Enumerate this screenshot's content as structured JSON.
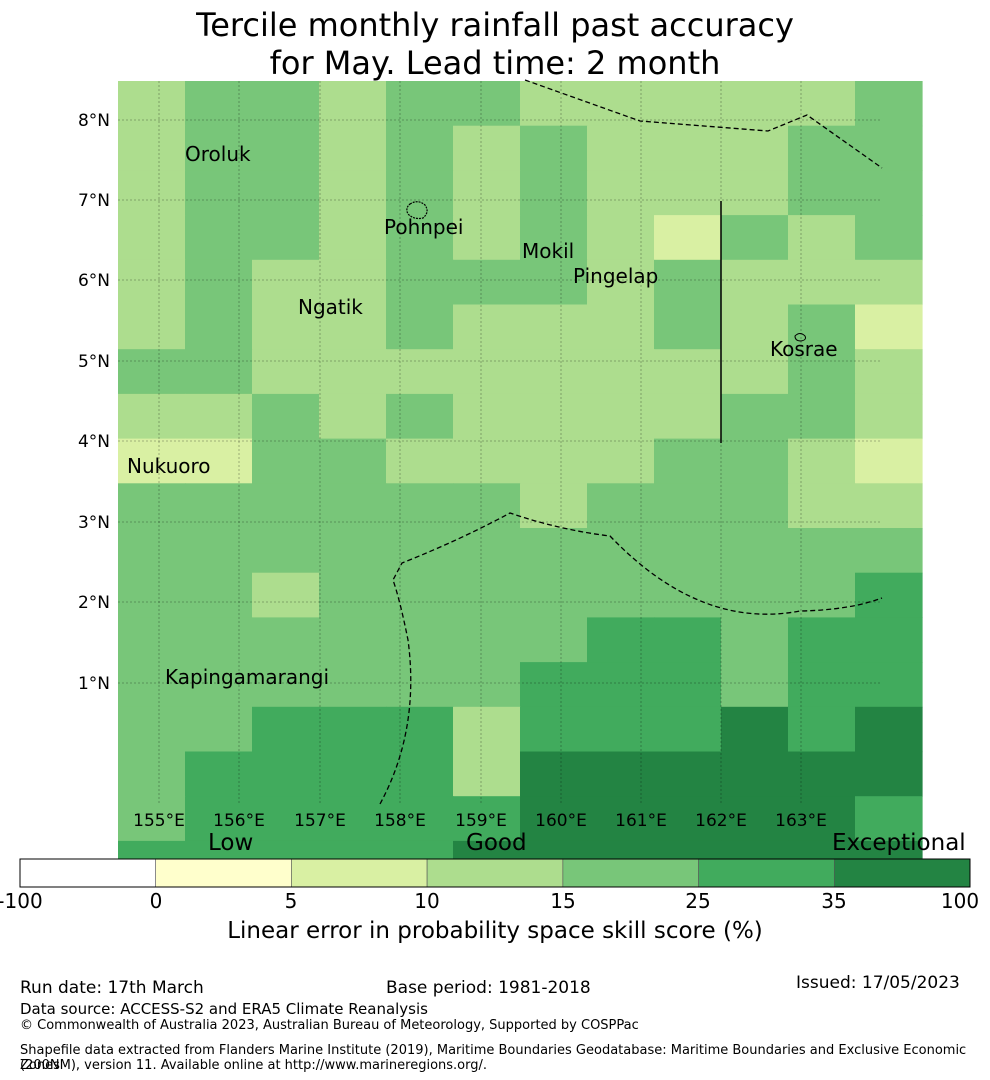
{
  "title": {
    "line1": "Tercile monthly rainfall past accuracy",
    "line2": "for May. Lead time: 2 month"
  },
  "map": {
    "lon_labels": [
      "155°E",
      "156°E",
      "157°E",
      "158°E",
      "159°E",
      "160°E",
      "161°E",
      "162°E",
      "163°E"
    ],
    "lat_labels": [
      "8°N",
      "7°N",
      "6°N",
      "5°N",
      "4°N",
      "3°N",
      "2°N",
      "1°N"
    ],
    "places": [
      "Oroluk",
      "Pohnpei",
      "Mokil",
      "Pingelap",
      "Ngatik",
      "Kosrae",
      "Nukuoro",
      "Kapingamarangi"
    ],
    "class_colors": [
      "#ffffff",
      "#ffffcc",
      "#d9f0a3",
      "#addd8e",
      "#78c679",
      "#41ab5d",
      "#238443"
    ],
    "grid": [
      [
        3,
        4,
        4,
        3,
        4,
        4,
        3,
        3,
        3,
        3,
        3,
        4
      ],
      [
        3,
        4,
        4,
        3,
        4,
        3,
        4,
        3,
        3,
        3,
        4,
        4
      ],
      [
        3,
        4,
        4,
        3,
        4,
        3,
        4,
        3,
        3,
        3,
        4,
        4
      ],
      [
        3,
        4,
        4,
        3,
        4,
        3,
        4,
        3,
        2,
        4,
        3,
        4
      ],
      [
        3,
        4,
        3,
        3,
        4,
        4,
        4,
        3,
        4,
        3,
        3,
        3
      ],
      [
        3,
        4,
        3,
        3,
        4,
        3,
        3,
        3,
        4,
        3,
        4,
        2
      ],
      [
        4,
        4,
        3,
        3,
        3,
        3,
        3,
        3,
        3,
        3,
        4,
        3
      ],
      [
        3,
        3,
        4,
        3,
        4,
        3,
        3,
        3,
        3,
        4,
        4,
        3
      ],
      [
        2,
        2,
        4,
        4,
        3,
        3,
        3,
        3,
        4,
        4,
        3,
        2
      ],
      [
        4,
        4,
        4,
        4,
        4,
        4,
        3,
        4,
        4,
        4,
        3,
        3
      ],
      [
        4,
        4,
        4,
        4,
        4,
        4,
        4,
        4,
        4,
        4,
        4,
        4
      ],
      [
        4,
        4,
        3,
        4,
        4,
        4,
        4,
        4,
        4,
        4,
        4,
        5
      ],
      [
        4,
        4,
        4,
        4,
        4,
        4,
        4,
        5,
        5,
        4,
        5,
        5
      ],
      [
        4,
        4,
        4,
        4,
        4,
        4,
        5,
        5,
        5,
        4,
        5,
        5
      ],
      [
        4,
        4,
        5,
        5,
        5,
        3,
        5,
        5,
        5,
        6,
        5,
        6
      ],
      [
        4,
        5,
        5,
        5,
        5,
        3,
        6,
        6,
        6,
        6,
        6,
        6
      ],
      [
        4,
        5,
        5,
        5,
        5,
        5,
        6,
        6,
        6,
        6,
        6,
        5
      ],
      [
        5,
        5,
        5,
        5,
        5,
        6,
        6,
        6,
        6,
        6,
        6,
        6
      ]
    ]
  },
  "colorbar": {
    "categories": [
      "Low",
      "Good",
      "Exceptional"
    ],
    "ticks": [
      "-100",
      "0",
      "5",
      "10",
      "15",
      "25",
      "35",
      "100"
    ],
    "colors": [
      "#ffffff",
      "#ffffcc",
      "#d9f0a3",
      "#addd8e",
      "#78c679",
      "#41ab5d",
      "#238443"
    ],
    "label": "Linear error in probability space skill score (%)"
  },
  "footer": {
    "run_date": "Run date: 17th March",
    "base_period": "Base period: 1981-2018",
    "issued": "Issued: 17/05/2023",
    "data_source": "Data source: ACCESS-S2 and ERA5 Climate Reanalysis",
    "copyright": "© Commonwealth of Australia 2023, Australian Bureau of Meteorology, Supported by COSPPac",
    "shapefile_line1": "Shapefile data extracted from Flanders Marine Institute (2019), Maritime Boundaries Geodatabase: Maritime Boundaries and Exclusive Economic Zones",
    "shapefile_line2": "(200NM), version 11. Available online at http://www.marineregions.org/."
  }
}
